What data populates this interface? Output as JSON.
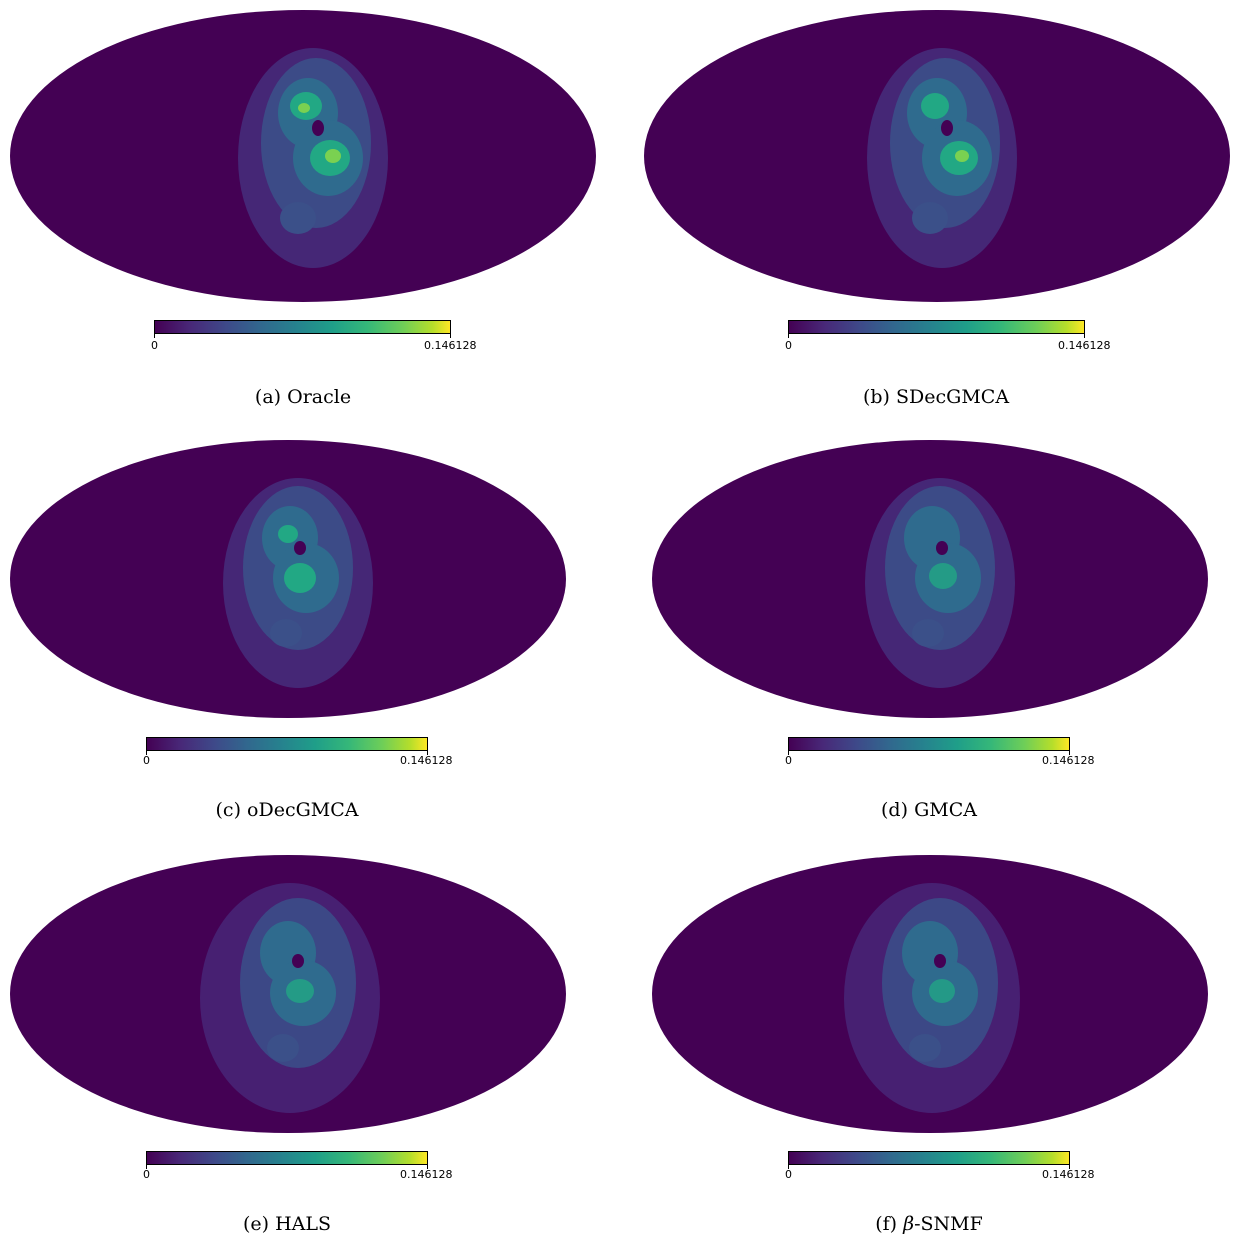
{
  "colors": {
    "background": "#440154",
    "blob_mid": "#2f6b8e",
    "blob_high": "#22a884",
    "blob_peak": "#7ad151"
  },
  "colorbar": {
    "min_label": "0",
    "max_label": "0.146128"
  },
  "panels": [
    {
      "label": "(a)",
      "name": "Oracle"
    },
    {
      "label": "(b)",
      "name": "SDecGMCA"
    },
    {
      "label": "(c)",
      "name": "oDecGMCA"
    },
    {
      "label": "(d)",
      "name": "GMCA"
    },
    {
      "label": "(e)",
      "name": "HALS"
    },
    {
      "label": "(f)",
      "name": "-SNMF",
      "prefix": "β"
    }
  ]
}
